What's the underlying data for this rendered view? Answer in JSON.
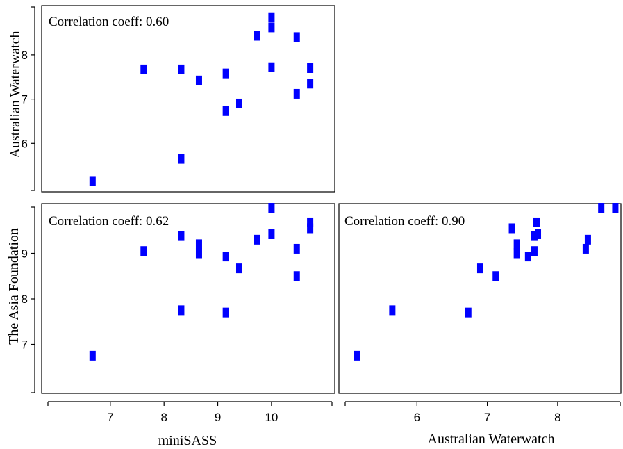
{
  "chart_data": {
    "type": "scatter",
    "axis_labels": {
      "bottom_left": "miniSASS",
      "bottom_right": "Australian Waterwatch",
      "left_top": "Australian Waterwatch",
      "left_bottom": "The Asia Foundation"
    },
    "panels": [
      {
        "id": "top-left",
        "annotation": "Correlation coeff: 0.60",
        "xlabel": "miniSASS",
        "ylabel": "Australian Waterwatch",
        "xlim": [
          5.8,
          11.1
        ],
        "ylim": [
          5.0,
          9.05
        ],
        "xticks": [
          7,
          8,
          9,
          10
        ],
        "yticks": [
          6,
          7,
          8
        ],
        "points": [
          {
            "x": 6.67,
            "y": 5.15
          },
          {
            "x": 7.62,
            "y": 7.67
          },
          {
            "x": 8.32,
            "y": 7.67
          },
          {
            "x": 8.32,
            "y": 5.65
          },
          {
            "x": 8.65,
            "y": 7.42
          },
          {
            "x": 9.15,
            "y": 7.58
          },
          {
            "x": 9.15,
            "y": 6.73
          },
          {
            "x": 9.4,
            "y": 6.9
          },
          {
            "x": 9.73,
            "y": 8.43
          },
          {
            "x": 10.0,
            "y": 8.85
          },
          {
            "x": 10.0,
            "y": 8.62
          },
          {
            "x": 10.0,
            "y": 7.72
          },
          {
            "x": 10.47,
            "y": 8.4
          },
          {
            "x": 10.47,
            "y": 7.12
          },
          {
            "x": 10.72,
            "y": 7.7
          },
          {
            "x": 10.72,
            "y": 7.35
          }
        ]
      },
      {
        "id": "bottom-left",
        "annotation": "Correlation coeff: 0.62",
        "xlabel": "miniSASS",
        "ylabel": "The Asia Foundation",
        "xlim": [
          5.8,
          11.1
        ],
        "ylim": [
          6.0,
          10.0
        ],
        "xticks": [
          7,
          8,
          9,
          10
        ],
        "yticks": [
          7,
          8,
          9
        ],
        "points": [
          {
            "x": 6.67,
            "y": 6.75
          },
          {
            "x": 7.62,
            "y": 9.05
          },
          {
            "x": 8.32,
            "y": 9.38
          },
          {
            "x": 8.32,
            "y": 7.75
          },
          {
            "x": 8.65,
            "y": 9.2
          },
          {
            "x": 8.65,
            "y": 9.0
          },
          {
            "x": 9.15,
            "y": 8.93
          },
          {
            "x": 9.15,
            "y": 7.7
          },
          {
            "x": 9.4,
            "y": 8.67
          },
          {
            "x": 9.73,
            "y": 9.3
          },
          {
            "x": 10.0,
            "y": 10.0
          },
          {
            "x": 10.0,
            "y": 9.42
          },
          {
            "x": 10.47,
            "y": 9.1
          },
          {
            "x": 10.47,
            "y": 8.5
          },
          {
            "x": 10.72,
            "y": 9.68
          },
          {
            "x": 10.72,
            "y": 9.55
          }
        ]
      },
      {
        "id": "bottom-right",
        "annotation": "Correlation coeff: 0.90",
        "xlabel": "Australian Waterwatch",
        "ylabel": "The Asia Foundation",
        "xlim": [
          4.98,
          8.87
        ],
        "ylim": [
          6.0,
          10.0
        ],
        "xticks": [
          6,
          7,
          8
        ],
        "yticks": [],
        "points": [
          {
            "x": 5.15,
            "y": 6.75
          },
          {
            "x": 5.65,
            "y": 7.75
          },
          {
            "x": 6.73,
            "y": 7.7
          },
          {
            "x": 6.9,
            "y": 8.67
          },
          {
            "x": 7.12,
            "y": 8.5
          },
          {
            "x": 7.35,
            "y": 9.55
          },
          {
            "x": 7.42,
            "y": 9.2
          },
          {
            "x": 7.42,
            "y": 9.0
          },
          {
            "x": 7.58,
            "y": 8.93
          },
          {
            "x": 7.67,
            "y": 9.05
          },
          {
            "x": 7.67,
            "y": 9.38
          },
          {
            "x": 7.7,
            "y": 9.68
          },
          {
            "x": 7.72,
            "y": 9.42
          },
          {
            "x": 8.4,
            "y": 9.1
          },
          {
            "x": 8.43,
            "y": 9.3
          },
          {
            "x": 8.62,
            "y": 10.0
          },
          {
            "x": 8.82,
            "y": 10.0
          }
        ]
      }
    ],
    "grid": false,
    "legend": "none",
    "colors": {
      "points": "#0000ff",
      "frame": "#000000"
    }
  }
}
